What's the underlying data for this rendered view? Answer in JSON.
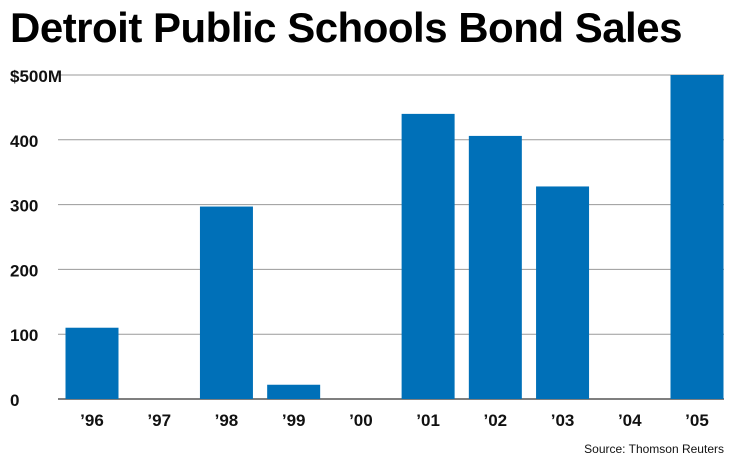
{
  "chart_data": {
    "type": "bar",
    "title": "Detroit Public Schools Bond Sales",
    "categories": [
      "’96",
      "’97",
      "’98",
      "’99",
      "’00",
      "’01",
      "’02",
      "’03",
      "’04",
      "’05"
    ],
    "values": [
      110,
      0,
      297,
      22,
      0,
      440,
      406,
      328,
      0,
      500
    ],
    "y_tick_labels": [
      "0",
      "100",
      "200",
      "300",
      "400",
      "$500M"
    ],
    "y_ticks": [
      0,
      100,
      200,
      300,
      400,
      500
    ],
    "ylim": [
      0,
      500
    ],
    "grid": true,
    "bar_color": "#0070b8",
    "source": "Source: Thomson Reuters"
  }
}
